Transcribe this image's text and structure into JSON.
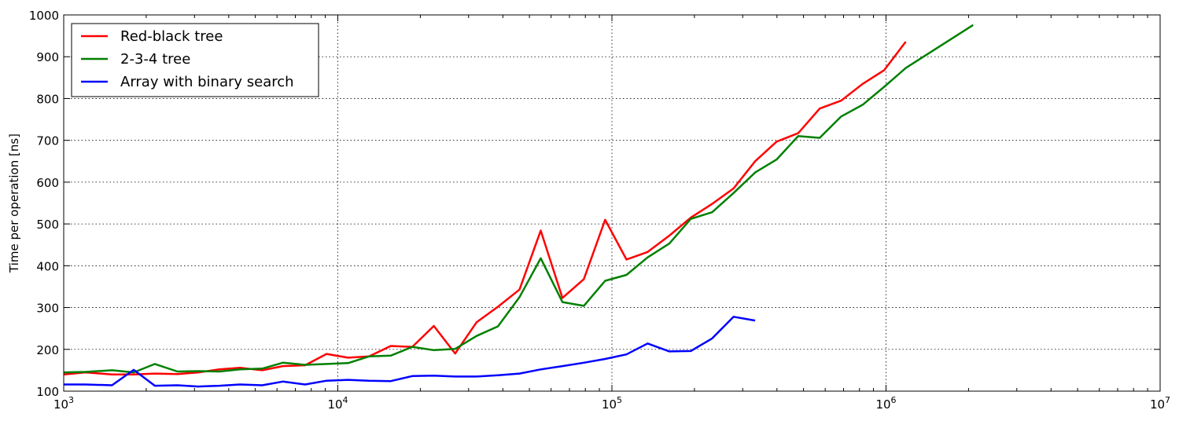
{
  "chart_data": {
    "type": "line",
    "ylabel": "Time per operation [ns]",
    "xlabel": "",
    "xscale": "log",
    "xlim": [
      1000,
      10000000
    ],
    "ylim": [
      100,
      1000
    ],
    "grid": true,
    "legend_position": "top-left",
    "x_ticks": [
      {
        "value": 1000,
        "base": "10",
        "exp": "3"
      },
      {
        "value": 10000,
        "base": "10",
        "exp": "4"
      },
      {
        "value": 100000,
        "base": "10",
        "exp": "5"
      },
      {
        "value": 1000000,
        "base": "10",
        "exp": "6"
      },
      {
        "value": 10000000,
        "base": "10",
        "exp": "7"
      }
    ],
    "y_ticks": [
      100,
      200,
      300,
      400,
      500,
      600,
      700,
      800,
      900,
      1000
    ],
    "series": [
      {
        "name": "Red-black tree",
        "color": "#ff0000",
        "x": [
          1000,
          1200,
          1500,
          1800,
          2150,
          2600,
          3100,
          3700,
          4400,
          5300,
          6300,
          7600,
          9100,
          10900,
          13000,
          15600,
          18700,
          22400,
          26800,
          32100,
          38400,
          46000,
          55000,
          66000,
          79000,
          94500,
          113000,
          135000,
          162000,
          194000,
          232000,
          278000,
          333000,
          399000,
          478000,
          573000,
          686000,
          822000,
          985000,
          1180000
        ],
        "y": [
          140,
          145,
          140,
          140,
          142,
          141,
          145,
          152,
          156,
          150,
          160,
          162,
          189,
          180,
          183,
          208,
          206,
          256,
          190,
          265,
          302,
          343,
          484,
          323,
          368,
          510,
          415,
          433,
          472,
          515,
          548,
          585,
          650,
          697,
          717,
          776,
          795,
          835,
          868,
          936
        ]
      },
      {
        "name": "2-3-4 tree",
        "color": "#008000",
        "x": [
          1000,
          1200,
          1500,
          1800,
          2150,
          2600,
          3100,
          3700,
          4400,
          5300,
          6300,
          7600,
          9100,
          10900,
          13000,
          15600,
          18700,
          22400,
          26800,
          32100,
          38400,
          46000,
          55000,
          66000,
          79000,
          94500,
          113000,
          135000,
          162000,
          194000,
          232000,
          278000,
          333000,
          399000,
          478000,
          573000,
          686000,
          822000,
          985000,
          1180000,
          2080000
        ],
        "y": [
          145,
          146,
          150,
          145,
          165,
          147,
          148,
          147,
          152,
          154,
          168,
          163,
          165,
          167,
          183,
          185,
          206,
          198,
          201,
          232,
          255,
          325,
          418,
          313,
          304,
          364,
          378,
          420,
          453,
          512,
          528,
          574,
          623,
          654,
          710,
          706,
          757,
          785,
          828,
          873,
          976
        ]
      },
      {
        "name": "Array with binary search",
        "color": "#0000ff",
        "x": [
          1000,
          1200,
          1500,
          1800,
          2150,
          2600,
          3100,
          3700,
          4400,
          5300,
          6300,
          7600,
          9100,
          10900,
          13000,
          15600,
          18700,
          22400,
          26800,
          32100,
          38400,
          46000,
          55000,
          66000,
          79000,
          94500,
          113000,
          135000,
          162000,
          194000,
          232000,
          278000,
          333000
        ],
        "y": [
          116,
          116,
          114,
          151,
          113,
          114,
          111,
          113,
          116,
          114,
          123,
          116,
          125,
          127,
          125,
          124,
          136,
          137,
          135,
          135,
          138,
          142,
          152,
          160,
          168,
          177,
          188,
          214,
          195,
          196,
          226,
          278,
          269
        ]
      }
    ]
  }
}
